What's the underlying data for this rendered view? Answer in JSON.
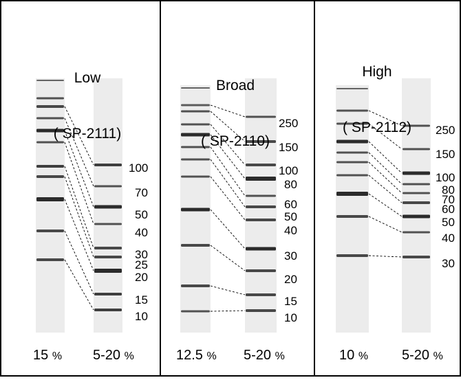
{
  "panels": [
    {
      "id": "low",
      "title_line1": "Low",
      "title_line2": "( SP-2111)",
      "left_gel": {
        "percent": "15",
        "unit": "%"
      },
      "right_gel": {
        "percent": "5-20",
        "unit": "%"
      },
      "mw_labels": [
        "100",
        "70",
        "50",
        "40",
        "30",
        "25",
        "20",
        "15",
        "10"
      ]
    },
    {
      "id": "broad",
      "title_line1": "Broad",
      "title_line2": "( SP-2110)",
      "left_gel": {
        "percent": "12.5",
        "unit": "%"
      },
      "right_gel": {
        "percent": "5-20",
        "unit": "%"
      },
      "mw_labels": [
        "250",
        "150",
        "100",
        "80",
        "60",
        "50",
        "40",
        "30",
        "20",
        "15",
        "10"
      ]
    },
    {
      "id": "high",
      "title_line1": "High",
      "title_line2": "( SP-2112)",
      "left_gel": {
        "percent": "10",
        "unit": "%"
      },
      "right_gel": {
        "percent": "5-20",
        "unit": "%"
      },
      "mw_labels": [
        "250",
        "150",
        "100",
        "80",
        "70",
        "60",
        "50",
        "40",
        "30"
      ]
    }
  ],
  "colors": {
    "border": "#000000",
    "lane": "#ececec",
    "band": "#2b2b2b"
  }
}
